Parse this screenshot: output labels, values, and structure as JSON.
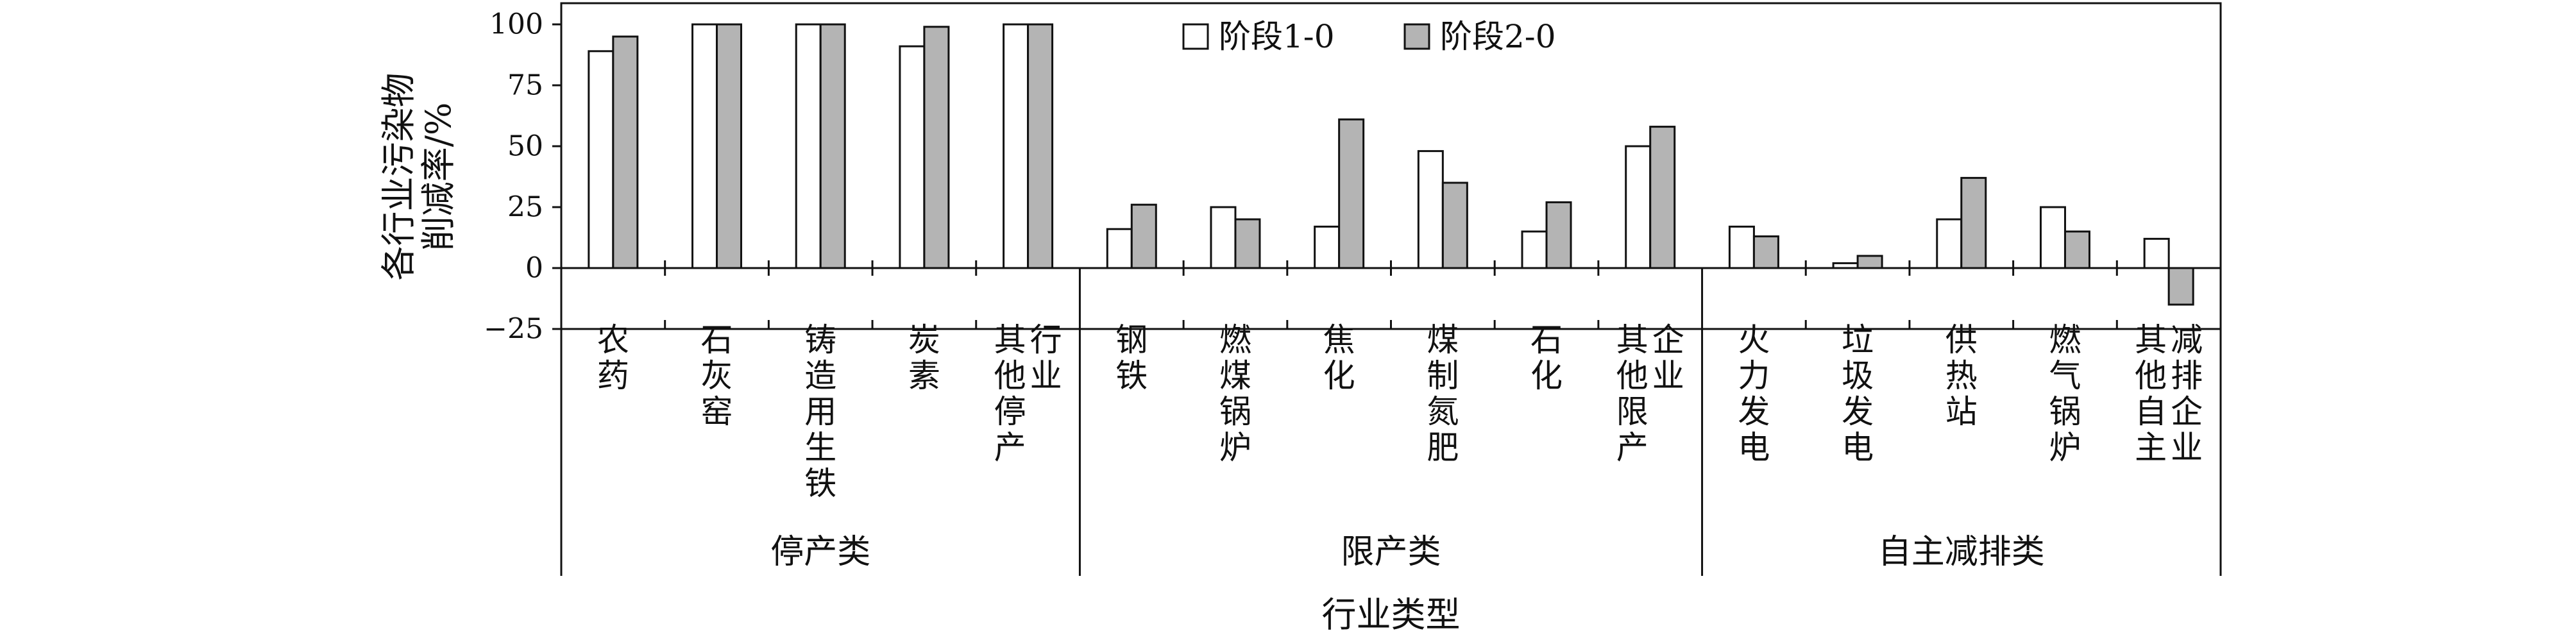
{
  "chart_data": {
    "type": "bar",
    "title": "",
    "xlabel": "行业类型",
    "ylabel": [
      "各行业污染物",
      "削减率/%"
    ],
    "ylim": [
      -25,
      100
    ],
    "yticks": [
      -25,
      0,
      25,
      50,
      75,
      100
    ],
    "grid": false,
    "legend_position": "top-center",
    "groups": [
      {
        "label": "停产类",
        "categories": [
          [
            "农药"
          ],
          [
            "石灰窑"
          ],
          [
            "铸造用生铁"
          ],
          [
            "炭素"
          ],
          [
            "其他停产",
            "行业"
          ]
        ]
      },
      {
        "label": "限产类",
        "categories": [
          [
            "钢铁"
          ],
          [
            "燃煤锅炉"
          ],
          [
            "焦化"
          ],
          [
            "煤制氮肥"
          ],
          [
            "石化"
          ],
          [
            "其他限产",
            "企业"
          ]
        ]
      },
      {
        "label": "自主减排类",
        "categories": [
          [
            "火力发电"
          ],
          [
            "垃圾发电"
          ],
          [
            "供热站"
          ],
          [
            "燃气锅炉"
          ],
          [
            "其他自主",
            "减排企业"
          ]
        ]
      }
    ],
    "series": [
      {
        "name": "阶段1-0",
        "color": "#ffffff",
        "values": [
          89,
          100,
          100,
          91,
          100,
          16,
          25,
          17,
          48,
          15,
          50,
          17,
          2,
          20,
          25,
          12
        ]
      },
      {
        "name": "阶段2-0",
        "color": "#b4b4b4",
        "values": [
          95,
          100,
          100,
          99,
          100,
          26,
          20,
          61,
          35,
          27,
          58,
          13,
          5,
          37,
          15,
          -15
        ]
      }
    ]
  }
}
